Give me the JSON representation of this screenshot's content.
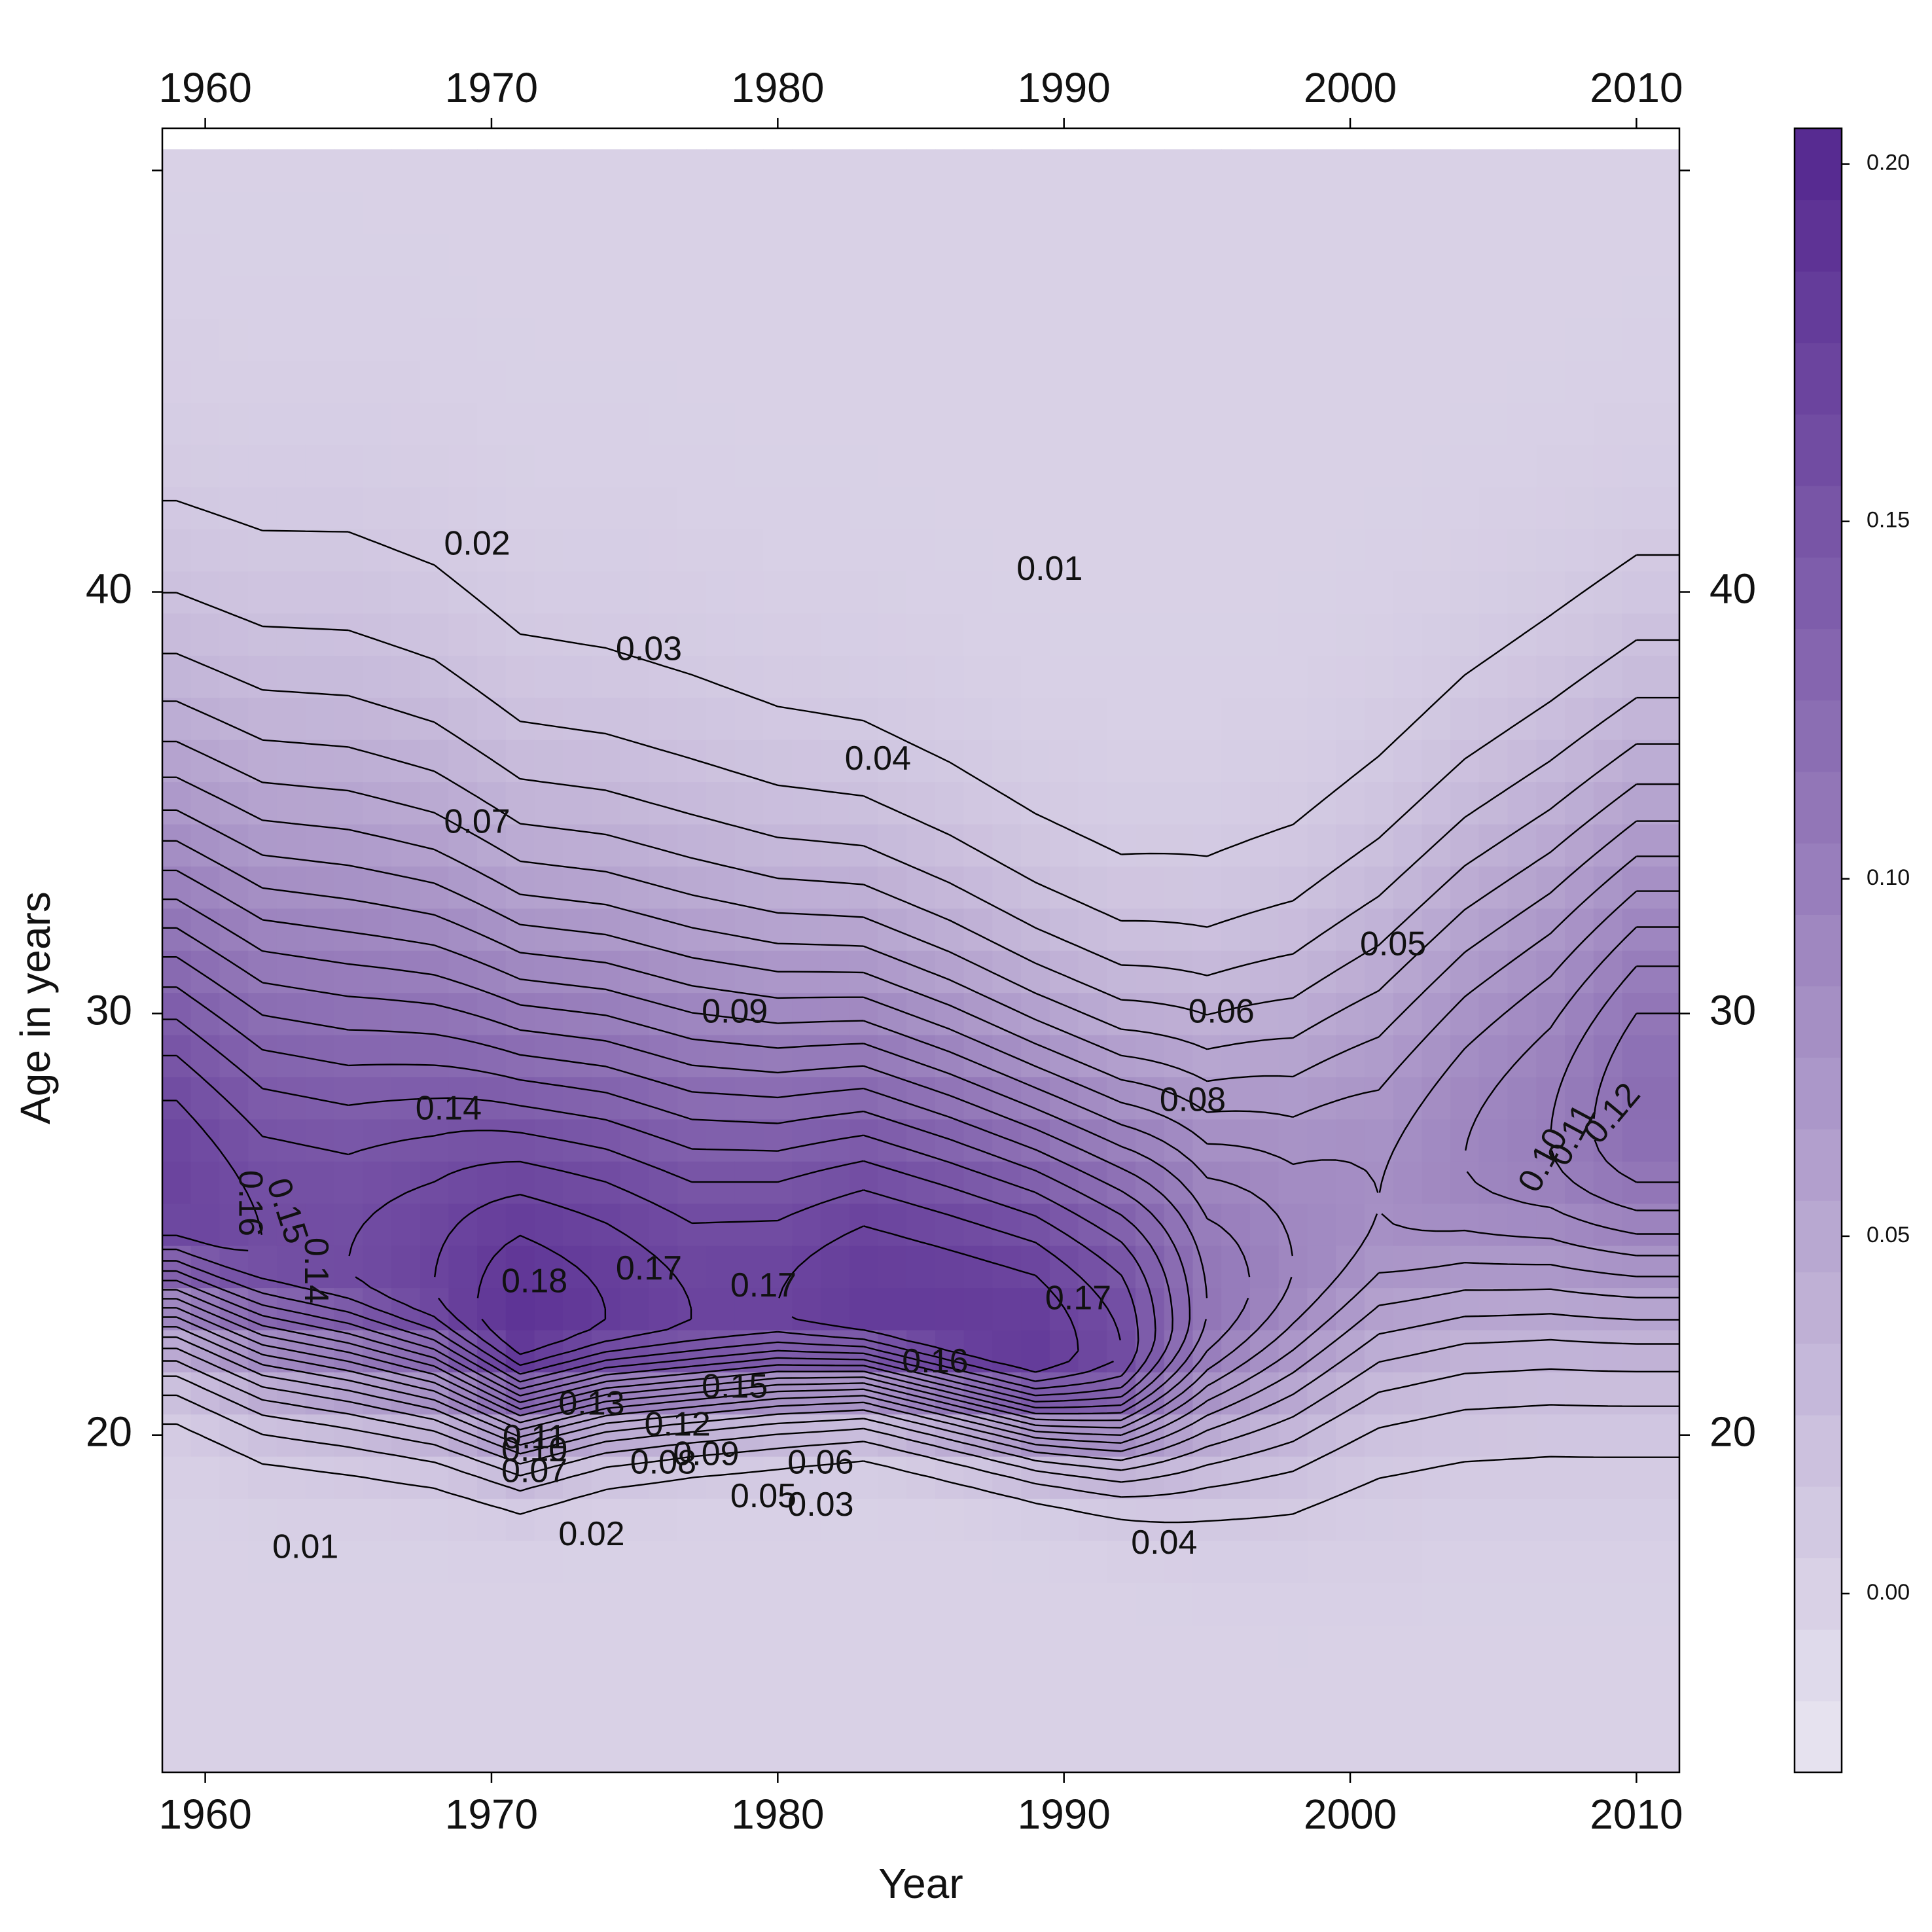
{
  "chart_data": {
    "type": "heatmap",
    "subtype": "filled-contour",
    "xlabel": "Year",
    "ylabel": "Age in years",
    "x_range": [
      1958.5,
      2011.5
    ],
    "y_range": [
      12,
      51
    ],
    "x_ticks": [
      1960,
      1970,
      1980,
      1990,
      2000,
      2010
    ],
    "y_ticks": [
      20,
      30,
      40
    ],
    "x_ticks_top": true,
    "y_ticks_right": true,
    "colorbar": {
      "range": [
        -0.025,
        0.205
      ],
      "ticks": [
        "0.00",
        "0.05",
        "0.10",
        "0.15",
        "0.20"
      ],
      "tick_values": [
        0.0,
        0.05,
        0.1,
        0.15,
        0.2
      ],
      "color_low": "#e9e6f1",
      "color_high": "#54278f"
    },
    "contour_levels": [
      0.01,
      0.02,
      0.03,
      0.04,
      0.05,
      0.06,
      0.07,
      0.08,
      0.09,
      0.1,
      0.11,
      0.12,
      0.13,
      0.14,
      0.15,
      0.16,
      0.17,
      0.18
    ],
    "surface_description": "Rate by year and age; peak band near age 22-26",
    "ridge": {
      "years": [
        1959,
        1962,
        1965,
        1968,
        1971,
        1974,
        1977,
        1980,
        1983,
        1986,
        1989,
        1992,
        1995,
        1998,
        2001,
        2004,
        2007,
        2010,
        2011
      ],
      "peak_age": [
        25.5,
        24.5,
        24.0,
        23.5,
        22.5,
        22.8,
        22.8,
        23.0,
        23.0,
        22.5,
        22.0,
        22.0,
        23.0,
        24.0,
        25.5,
        26.5,
        27.0,
        27.5,
        27.5
      ],
      "peak": [
        0.17,
        0.16,
        0.16,
        0.17,
        0.19,
        0.18,
        0.17,
        0.17,
        0.18,
        0.18,
        0.18,
        0.16,
        0.11,
        0.09,
        0.08,
        0.09,
        0.1,
        0.12,
        0.12
      ],
      "upper_spread": [
        7.0,
        7.2,
        7.4,
        7.2,
        6.8,
        6.6,
        6.4,
        6.0,
        5.8,
        5.6,
        5.3,
        5.0,
        4.9,
        5.0,
        5.2,
        5.5,
        5.8,
        6.0,
        6.0
      ],
      "lower_spread": [
        2.2,
        2.2,
        2.1,
        2.0,
        1.8,
        1.7,
        1.6,
        1.6,
        1.5,
        1.5,
        1.5,
        1.7,
        2.3,
        2.8,
        3.2,
        3.4,
        3.5,
        3.6,
        3.6
      ]
    },
    "contour_labels": [
      {
        "text": "0.02",
        "x": 1969.5,
        "y": 41.1
      },
      {
        "text": "0.01",
        "x": 1989.5,
        "y": 40.5
      },
      {
        "text": "0.03",
        "x": 1975.5,
        "y": 38.6
      },
      {
        "text": "0.04",
        "x": 1983.5,
        "y": 36.0
      },
      {
        "text": "0.07",
        "x": 1969.5,
        "y": 34.5
      },
      {
        "text": "0.05",
        "x": 2001.5,
        "y": 31.6
      },
      {
        "text": "0.09",
        "x": 1978.5,
        "y": 30.0
      },
      {
        "text": "0.06",
        "x": 1995.5,
        "y": 30.0
      },
      {
        "text": "0.14",
        "x": 1968.5,
        "y": 27.7
      },
      {
        "text": "0.08",
        "x": 1994.5,
        "y": 27.9
      },
      {
        "text": "0.18",
        "x": 1971.5,
        "y": 23.6
      },
      {
        "text": "0.17",
        "x": 1975.5,
        "y": 23.9
      },
      {
        "text": "0.17",
        "x": 1979.5,
        "y": 23.5
      },
      {
        "text": "0.17",
        "x": 1990.5,
        "y": 23.2
      },
      {
        "text": "0.16",
        "x": 1985.5,
        "y": 21.7
      },
      {
        "text": "0.15",
        "x": 1978.5,
        "y": 21.1
      },
      {
        "text": "0.13",
        "x": 1973.5,
        "y": 20.7
      },
      {
        "text": "0.12",
        "x": 1976.5,
        "y": 20.2
      },
      {
        "text": "0.11",
        "x": 1971.5,
        "y": 19.9
      },
      {
        "text": "0.10",
        "x": 1971.5,
        "y": 19.6
      },
      {
        "text": "0.09",
        "x": 1977.5,
        "y": 19.5
      },
      {
        "text": "0.08",
        "x": 1976.0,
        "y": 19.3
      },
      {
        "text": "0.07",
        "x": 1971.5,
        "y": 19.1
      },
      {
        "text": "0.06",
        "x": 1981.5,
        "y": 19.3
      },
      {
        "text": "0.05",
        "x": 1979.5,
        "y": 18.5
      },
      {
        "text": "0.03",
        "x": 1981.5,
        "y": 18.3
      },
      {
        "text": "0.02",
        "x": 1973.5,
        "y": 17.6
      },
      {
        "text": "0.01",
        "x": 1963.5,
        "y": 17.3
      },
      {
        "text": "0.04",
        "x": 1993.5,
        "y": 17.4
      },
      {
        "text": "0.16",
        "x": 1961.5,
        "y": 25.5,
        "rotate": 90
      },
      {
        "text": "0.15",
        "x": 1962.8,
        "y": 25.3,
        "rotate": 72
      },
      {
        "text": "0.14",
        "x": 1963.8,
        "y": 23.9,
        "rotate": 90
      },
      {
        "text": "0.10",
        "x": 2006.8,
        "y": 26.5,
        "rotate": -62
      },
      {
        "text": "0.11",
        "x": 2007.8,
        "y": 27.1,
        "rotate": -62
      },
      {
        "text": "0.12",
        "x": 2009.2,
        "y": 27.6,
        "rotate": -50
      }
    ]
  }
}
